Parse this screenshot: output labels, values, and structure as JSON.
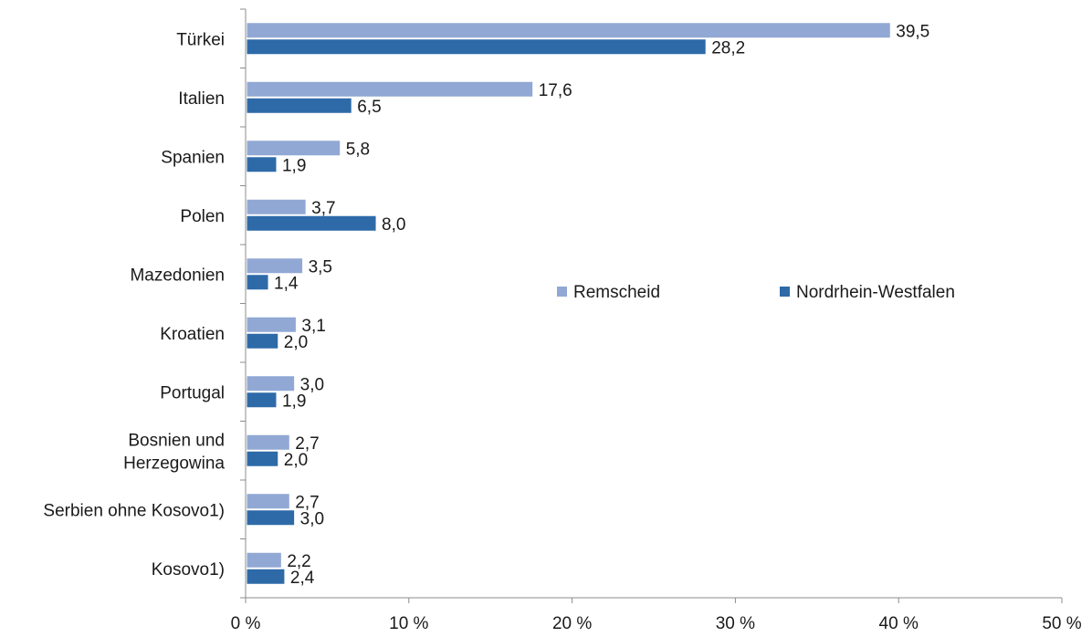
{
  "chart_data": {
    "type": "bar",
    "orientation": "horizontal",
    "categories": [
      "Türkei",
      "Italien",
      "Spanien",
      "Polen",
      "Mazedonien",
      "Kroatien",
      "Portugal",
      "Bosnien und Herzegowina",
      "Serbien ohne Kosovo1)",
      "Kosovo1)"
    ],
    "category_lines": [
      [
        "Türkei"
      ],
      [
        "Italien"
      ],
      [
        "Spanien"
      ],
      [
        "Polen"
      ],
      [
        "Mazedonien"
      ],
      [
        "Kroatien"
      ],
      [
        "Portugal"
      ],
      [
        "Bosnien und",
        "Herzegowina"
      ],
      [
        "Serbien ohne Kosovo1)"
      ],
      [
        "Kosovo1)"
      ]
    ],
    "series": [
      {
        "name": "Remscheid",
        "color": "#91a8d4",
        "values": [
          39.5,
          17.6,
          5.8,
          3.7,
          3.5,
          3.1,
          3.0,
          2.7,
          2.7,
          2.2
        ],
        "labels": [
          "39,5",
          "17,6",
          "5,8",
          "3,7",
          "3,5",
          "3,1",
          "3,0",
          "2,7",
          "2,7",
          "2,2"
        ]
      },
      {
        "name": "Nordrhein-Westfalen",
        "color": "#2e6aa8",
        "values": [
          28.2,
          6.5,
          1.9,
          8.0,
          1.4,
          2.0,
          1.9,
          2.0,
          3.0,
          2.4
        ],
        "labels": [
          "28,2",
          "6,5",
          "1,9",
          "8,0",
          "1,4",
          "2,0",
          "1,9",
          "2,0",
          "3,0",
          "2,4"
        ]
      }
    ],
    "xlim": [
      0,
      50
    ],
    "xticks": [
      0,
      10,
      20,
      30,
      40,
      50
    ],
    "xtick_labels": [
      "0 %",
      "10 %",
      "20 %",
      "30 %",
      "40 %",
      "50 %"
    ],
    "grid": false,
    "legend_position": "center-right, inside plot"
  }
}
